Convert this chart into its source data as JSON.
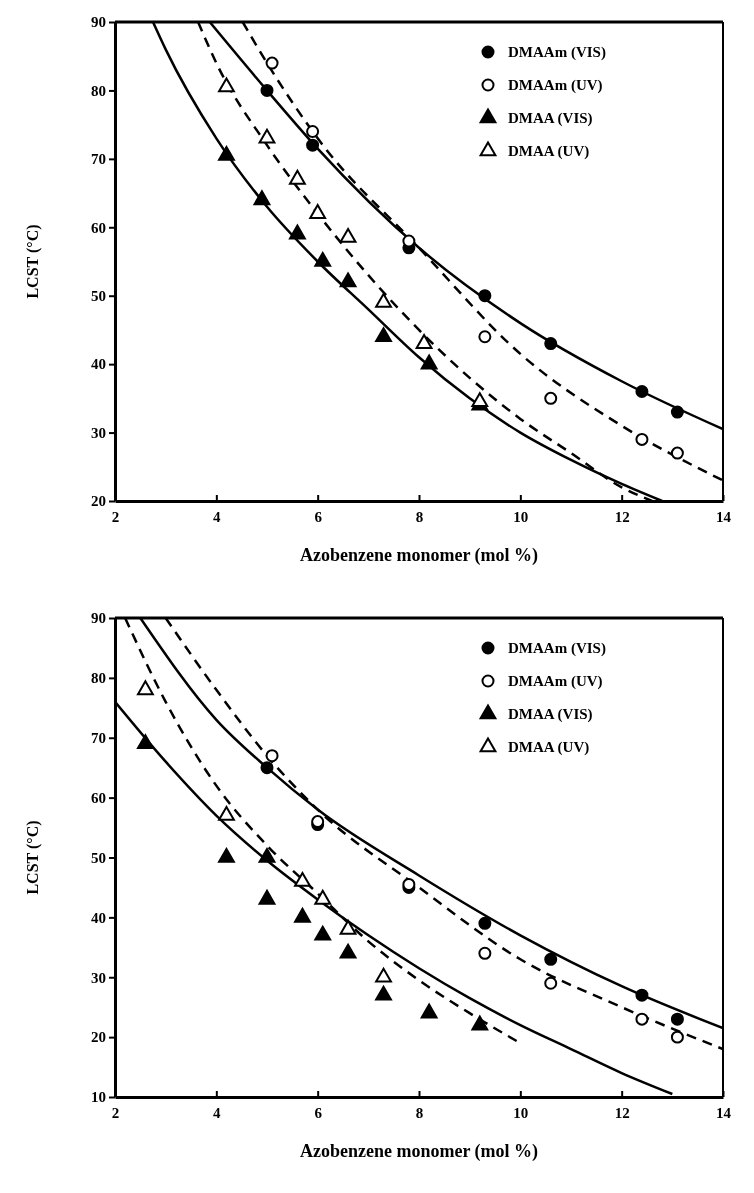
{
  "chart_data": [
    {
      "type": "scatter",
      "xlabel": "Azobenzene monomer (mol %)",
      "ylabel": "LCST (°C)",
      "xlim": [
        2,
        14
      ],
      "ylim": [
        20,
        90
      ],
      "xticks": [
        2,
        4,
        6,
        8,
        10,
        12,
        14
      ],
      "yticks": [
        20,
        30,
        40,
        50,
        60,
        70,
        80,
        90
      ],
      "legend": "top right",
      "grid": false,
      "series": [
        {
          "name": "DMAAm (VIS)",
          "color": "#000000",
          "marker": "circle",
          "x": [
            5.0,
            5.9,
            7.8,
            9.3,
            10.6,
            12.4,
            13.1
          ],
          "values": [
            80,
            72,
            57,
            50,
            43,
            36,
            33
          ]
        },
        {
          "name": "DMAAm (UV)",
          "color": "#ffffff",
          "marker": "circle",
          "x": [
            5.1,
            5.9,
            7.8,
            9.3,
            10.6,
            12.4,
            13.1
          ],
          "values": [
            84,
            74,
            58,
            44,
            35,
            29,
            27
          ]
        },
        {
          "name": "DMAA (VIS)",
          "color": "#000000",
          "marker": "triangle",
          "x": [
            4.2,
            4.9,
            5.6,
            6.1,
            6.6,
            7.3,
            8.2,
            9.2
          ],
          "values": [
            70.5,
            64,
            59,
            55,
            52,
            44,
            40,
            34
          ]
        },
        {
          "name": "DMAA (UV)",
          "color": "#ffffff",
          "marker": "triangle",
          "x": [
            4.2,
            5.0,
            5.6,
            6.0,
            6.6,
            7.3,
            8.1,
            9.2
          ],
          "values": [
            80.5,
            73,
            67,
            62,
            58.5,
            49,
            43,
            34.5
          ]
        },
        {
          "type": "line",
          "color": "#000000",
          "line_style": "solid",
          "x": [
            3.87,
            5,
            6,
            8,
            10,
            12,
            14
          ],
          "values": [
            90,
            80,
            71.5,
            57,
            46,
            37.5,
            30.5
          ]
        },
        {
          "type": "line",
          "color": "#000000",
          "line_style": "dashed",
          "x": [
            4.52,
            5,
            6,
            8,
            10,
            12,
            14
          ],
          "values": [
            90,
            84,
            73,
            57,
            41.5,
            31,
            23
          ]
        },
        {
          "type": "line",
          "color": "#000000",
          "line_style": "solid",
          "x": [
            2.75,
            3,
            4,
            5,
            6,
            7,
            8,
            9,
            10,
            11,
            12,
            12.8
          ],
          "values": [
            90,
            86,
            73,
            63,
            55,
            48,
            41,
            35,
            30,
            26,
            22.5,
            20
          ]
        },
        {
          "type": "line",
          "color": "#000000",
          "line_style": "dashed",
          "x": [
            3.64,
            4,
            5,
            6,
            7,
            8,
            9,
            10,
            11,
            12,
            12.6
          ],
          "values": [
            90,
            84,
            72,
            62,
            53,
            45,
            38,
            32,
            27,
            22,
            20
          ]
        }
      ]
    },
    {
      "type": "scatter",
      "xlabel": "Azobenzene monomer (mol %)",
      "ylabel": "LCST (°C)",
      "xlim": [
        2,
        14
      ],
      "ylim": [
        10,
        90
      ],
      "xticks": [
        2,
        4,
        6,
        8,
        10,
        12,
        14
      ],
      "yticks": [
        10,
        20,
        30,
        40,
        50,
        60,
        70,
        80,
        90
      ],
      "legend": "top right",
      "grid": false,
      "series": [
        {
          "name": "DMAAm (VIS)",
          "color": "#000000",
          "marker": "circle",
          "x": [
            5.0,
            6.0,
            7.8,
            9.3,
            10.6,
            12.4,
            13.1
          ],
          "values": [
            65,
            55.5,
            45,
            39,
            33,
            27,
            23
          ]
        },
        {
          "name": "DMAAm (UV)",
          "color": "#ffffff",
          "marker": "circle",
          "x": [
            5.1,
            6.0,
            7.8,
            9.3,
            10.6,
            12.4,
            13.1
          ],
          "values": [
            67,
            56,
            45.5,
            34,
            29,
            23,
            20
          ]
        },
        {
          "name": "DMAA (VIS)",
          "color": "#000000",
          "marker": "triangle",
          "x": [
            2.6,
            4.2,
            5.0,
            5.0,
            5.7,
            6.1,
            6.6,
            7.3,
            8.2,
            9.2
          ],
          "values": [
            69,
            50,
            50,
            43,
            40,
            37,
            34,
            27,
            24,
            22
          ]
        },
        {
          "name": "DMAA (UV)",
          "color": "#ffffff",
          "marker": "triangle",
          "x": [
            2.6,
            4.2,
            5.7,
            6.1,
            6.6,
            7.3
          ],
          "values": [
            78,
            57,
            46,
            43,
            38,
            30
          ]
        },
        {
          "type": "line",
          "color": "#000000",
          "line_style": "solid",
          "x": [
            2.5,
            4,
            5,
            6,
            8,
            10,
            12,
            14
          ],
          "values": [
            90,
            73,
            65,
            58,
            47,
            37,
            28.5,
            21.5
          ]
        },
        {
          "type": "line",
          "color": "#000000",
          "line_style": "dashed",
          "x": [
            3,
            4,
            5,
            6,
            8,
            10,
            12,
            14
          ],
          "values": [
            90,
            78,
            67,
            58,
            45,
            33,
            25,
            18
          ]
        },
        {
          "type": "line",
          "color": "#000000",
          "line_style": "solid",
          "x": [
            2,
            3,
            4,
            5,
            6,
            7,
            8,
            9,
            10,
            11,
            12,
            13
          ],
          "values": [
            76,
            66,
            57,
            49.5,
            43,
            37,
            31.5,
            26.5,
            22,
            18,
            14,
            10.5
          ]
        },
        {
          "type": "line",
          "color": "#000000",
          "line_style": "dashed",
          "x": [
            2.2,
            3,
            4,
            5,
            6,
            7,
            8,
            9,
            10
          ],
          "values": [
            90,
            76,
            62,
            52,
            44,
            36,
            29.5,
            24,
            19
          ]
        }
      ]
    }
  ]
}
